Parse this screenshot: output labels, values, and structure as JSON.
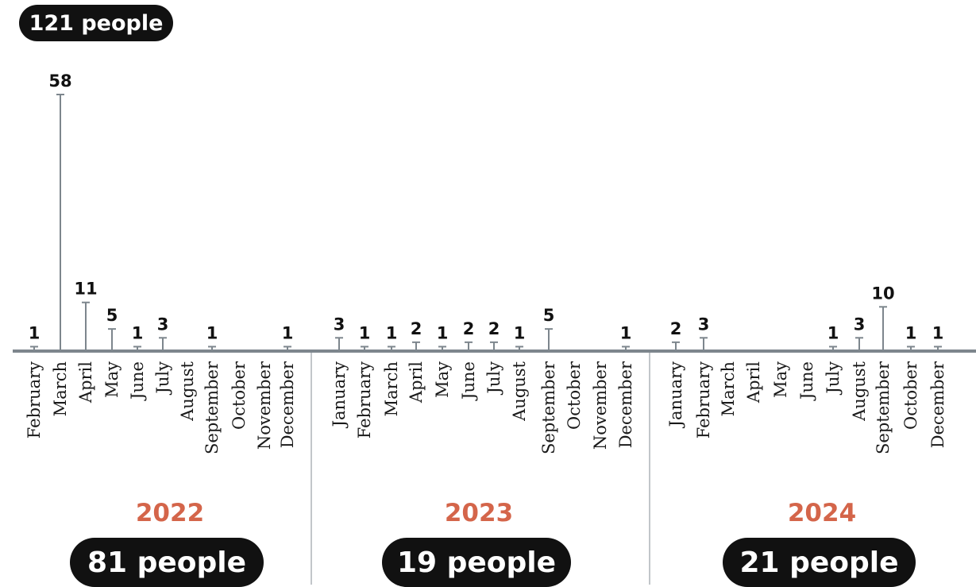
{
  "total_label": "121 people",
  "colors": {
    "axis": "#7d868d",
    "stem": "#7d868d",
    "value_text": "#111111",
    "month_text": "#1a1a1a",
    "year_text": "#d4654a",
    "pill_bg": "#111111",
    "pill_text": "#ffffff",
    "divider": "#9aa1a6"
  },
  "years": [
    {
      "year": "2022",
      "total_label": "81 people"
    },
    {
      "year": "2023",
      "total_label": "19 people"
    },
    {
      "year": "2024",
      "total_label": "21 people"
    }
  ],
  "chart_data": {
    "type": "bar",
    "title": "",
    "xlabel": "",
    "ylabel": "",
    "ylim": [
      0,
      60
    ],
    "grid": false,
    "series": [
      {
        "values": [
          1,
          58,
          11,
          5,
          1,
          3,
          null,
          1,
          null,
          null,
          1,
          3,
          1,
          1,
          2,
          1,
          2,
          2,
          1,
          5,
          null,
          null,
          1,
          2,
          3,
          null,
          null,
          null,
          null,
          1,
          3,
          10,
          1,
          1
        ]
      }
    ],
    "categories": [
      {
        "label": "February",
        "year": "2022"
      },
      {
        "label": "March",
        "year": "2022"
      },
      {
        "label": "April",
        "year": "2022"
      },
      {
        "label": "May",
        "year": "2022"
      },
      {
        "label": "June",
        "year": "2022"
      },
      {
        "label": "July",
        "year": "2022"
      },
      {
        "label": "August",
        "year": "2022"
      },
      {
        "label": "September",
        "year": "2022"
      },
      {
        "label": "October",
        "year": "2022"
      },
      {
        "label": "November",
        "year": "2022"
      },
      {
        "label": "December",
        "year": "2022"
      },
      {
        "label": "January",
        "year": "2023"
      },
      {
        "label": "February",
        "year": "2023"
      },
      {
        "label": "March",
        "year": "2023"
      },
      {
        "label": "April",
        "year": "2023"
      },
      {
        "label": "May",
        "year": "2023"
      },
      {
        "label": "June",
        "year": "2023"
      },
      {
        "label": "July",
        "year": "2023"
      },
      {
        "label": "August",
        "year": "2023"
      },
      {
        "label": "September",
        "year": "2023"
      },
      {
        "label": "October",
        "year": "2023"
      },
      {
        "label": "November",
        "year": "2023"
      },
      {
        "label": "December",
        "year": "2023"
      },
      {
        "label": "January",
        "year": "2024"
      },
      {
        "label": "February",
        "year": "2024"
      },
      {
        "label": "March",
        "year": "2024"
      },
      {
        "label": "April",
        "year": "2024"
      },
      {
        "label": "May",
        "year": "2024"
      },
      {
        "label": "June",
        "year": "2024"
      },
      {
        "label": "July",
        "year": "2024"
      },
      {
        "label": "August",
        "year": "2024"
      },
      {
        "label": "September",
        "year": "2024"
      },
      {
        "label": "October",
        "year": "2024"
      },
      {
        "label": "December",
        "year": "2024"
      }
    ]
  }
}
